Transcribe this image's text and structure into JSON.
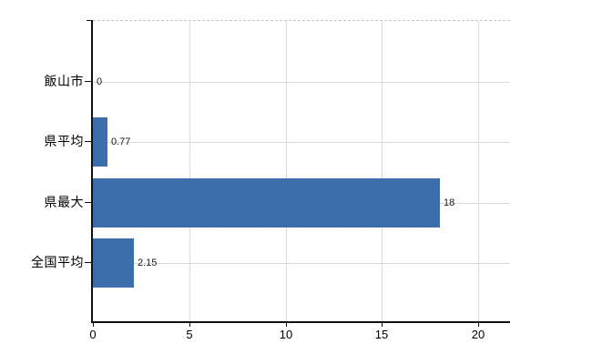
{
  "chart_data": {
    "type": "bar",
    "orientation": "horizontal",
    "categories": [
      "飯山市",
      "県平均",
      "県最大",
      "全国平均"
    ],
    "values": [
      0,
      0.77,
      18,
      2.15
    ],
    "value_labels": [
      "0",
      "0.77",
      "18",
      "2.15"
    ],
    "x_tick_labels": [
      "0",
      "5",
      "10",
      "15",
      "20"
    ],
    "x_tick_values": [
      0,
      5,
      10,
      15,
      20
    ],
    "xlim": [
      0,
      21.65
    ],
    "grid": true,
    "legend_position": "none",
    "bar_color": "#3d6da9",
    "bar_dither_light": "#4478b9",
    "bar_dither_dark": "#35639c",
    "grid_color": "#d9d9d9",
    "plot_top_border_color": "#c6c6c6",
    "axis_color": "#111111",
    "text_color": "#000000"
  }
}
